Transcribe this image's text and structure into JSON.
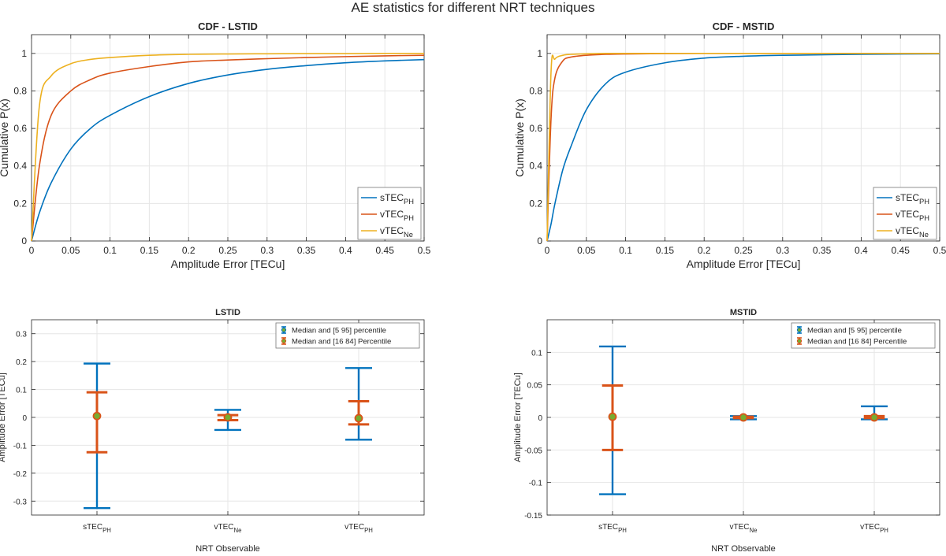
{
  "figure": {
    "title": "AE statistics for different NRT techniques"
  },
  "colors": {
    "blue": "#0072BD",
    "orange": "#D95319",
    "yellow": "#EDB120",
    "green": "#77AC30",
    "grid": "#e6e6e6",
    "axis": "#262626"
  },
  "chart_data": [
    {
      "id": "cdf-lstid",
      "type": "line",
      "title": "CDF - LSTID",
      "xlabel": "Amplitude Error [TECu]",
      "ylabel": "Cumulative P(x)",
      "xlim": [
        0,
        0.5
      ],
      "ylim": [
        0,
        1.1
      ],
      "xticks": [
        0,
        0.05,
        0.1,
        0.15,
        0.2,
        0.25,
        0.3,
        0.35,
        0.4,
        0.45,
        0.5
      ],
      "xtick_labels": [
        "0",
        "0.05",
        "0.1",
        "0.15",
        "0.2",
        "0.25",
        "0.3",
        "0.35",
        "0.4",
        "0.45",
        "0.5"
      ],
      "yticks": [
        0,
        0.2,
        0.4,
        0.6,
        0.8,
        1
      ],
      "ytick_labels": [
        "0",
        "0.2",
        "0.4",
        "0.6",
        "0.8",
        "1"
      ],
      "grid": true,
      "legend_position": "bottom-right",
      "x": [
        0,
        0.01,
        0.025,
        0.05,
        0.075,
        0.1,
        0.15,
        0.2,
        0.25,
        0.3,
        0.35,
        0.4,
        0.45,
        0.5
      ],
      "series": [
        {
          "name": "sTEC",
          "sub": "PH",
          "color": "blue",
          "values": [
            0,
            0.15,
            0.31,
            0.49,
            0.6,
            0.67,
            0.77,
            0.84,
            0.885,
            0.915,
            0.935,
            0.95,
            0.96,
            0.967
          ]
        },
        {
          "name": "vTEC",
          "sub": "PH",
          "color": "orange",
          "values": [
            0,
            0.4,
            0.67,
            0.8,
            0.86,
            0.895,
            0.93,
            0.955,
            0.965,
            0.972,
            0.978,
            0.983,
            0.987,
            0.99
          ]
        },
        {
          "name": "vTEC",
          "sub": "Ne",
          "color": "yellow",
          "values": [
            0,
            0.72,
            0.88,
            0.945,
            0.968,
            0.978,
            0.99,
            0.995,
            0.997,
            0.998,
            0.999,
            0.999,
            1,
            1
          ]
        }
      ]
    },
    {
      "id": "cdf-mstid",
      "type": "line",
      "title": "CDF - MSTID",
      "xlabel": "Amplitude Error [TECu]",
      "ylabel": "Cumulative P(x)",
      "xlim": [
        0,
        0.5
      ],
      "ylim": [
        0,
        1.1
      ],
      "xticks": [
        0,
        0.05,
        0.1,
        0.15,
        0.2,
        0.25,
        0.3,
        0.35,
        0.4,
        0.45,
        0.5
      ],
      "xtick_labels": [
        "0",
        "0.05",
        "0.1",
        "0.15",
        "0.2",
        "0.25",
        "0.3",
        "0.35",
        "0.4",
        "0.45",
        "0.5"
      ],
      "yticks": [
        0,
        0.2,
        0.4,
        0.6,
        0.8,
        1
      ],
      "ytick_labels": [
        "0",
        "0.2",
        "0.4",
        "0.6",
        "0.8",
        "1"
      ],
      "grid": true,
      "legend_position": "bottom-right",
      "x": [
        0,
        0.005,
        0.01,
        0.02,
        0.03,
        0.05,
        0.075,
        0.1,
        0.15,
        0.2,
        0.25,
        0.3,
        0.4,
        0.5
      ],
      "series": [
        {
          "name": "sTEC",
          "sub": "PH",
          "color": "blue",
          "values": [
            0,
            0.09,
            0.2,
            0.38,
            0.5,
            0.7,
            0.84,
            0.9,
            0.95,
            0.975,
            0.985,
            0.99,
            0.995,
            0.998
          ]
        },
        {
          "name": "vTEC",
          "sub": "PH",
          "color": "orange",
          "values": [
            0,
            0.65,
            0.87,
            0.96,
            0.98,
            0.99,
            0.995,
            0.997,
            0.999,
            1,
            1,
            1,
            1,
            1
          ]
        },
        {
          "name": "vTEC",
          "sub": "Ne",
          "color": "yellow",
          "values": [
            0,
            0.9,
            0.97,
            0.99,
            0.995,
            0.998,
            1,
            1,
            1,
            1,
            1,
            1,
            1,
            1
          ]
        }
      ]
    },
    {
      "id": "errorbar-lstid",
      "type": "errorbar",
      "title": "LSTID",
      "xlabel": "NRT Observable",
      "ylabel": "Amplitude Error [TECu]",
      "ylim": [
        -0.35,
        0.35
      ],
      "yticks": [
        -0.3,
        -0.2,
        -0.1,
        0,
        0.1,
        0.2,
        0.3
      ],
      "ytick_labels": [
        "-0.3",
        "-0.2",
        "-0.1",
        "0",
        "0.1",
        "0.2",
        "0.3"
      ],
      "grid": true,
      "legend_position": "top-right",
      "categories": [
        {
          "name": "sTEC",
          "sub": "PH"
        },
        {
          "name": "vTEC",
          "sub": "Ne"
        },
        {
          "name": "vTEC",
          "sub": "PH"
        }
      ],
      "series": [
        {
          "name": "Median and [5 95] percentile",
          "color": "blue",
          "marker": "green",
          "median": [
            0.005,
            0.0,
            -0.003
          ],
          "low": [
            -0.325,
            -0.045,
            -0.08
          ],
          "high": [
            0.193,
            0.027,
            0.177
          ]
        },
        {
          "name": "Median and [16 84] Percentile",
          "color": "orange",
          "marker": "green",
          "median": [
            0.005,
            0.0,
            -0.003
          ],
          "low": [
            -0.125,
            -0.01,
            -0.025
          ],
          "high": [
            0.09,
            0.008,
            0.058
          ]
        }
      ]
    },
    {
      "id": "errorbar-mstid",
      "type": "errorbar",
      "title": "MSTID",
      "xlabel": "NRT Observable",
      "ylabel": "Amplitude Error [TECu]",
      "ylim": [
        -0.15,
        0.15
      ],
      "yticks": [
        -0.15,
        -0.1,
        -0.05,
        0,
        0.05,
        0.1
      ],
      "ytick_labels": [
        "-0.15",
        "-0.1",
        "-0.05",
        "0",
        "0.05",
        "0.1"
      ],
      "grid": true,
      "legend_position": "top-right",
      "categories": [
        {
          "name": "sTEC",
          "sub": "PH"
        },
        {
          "name": "vTEC",
          "sub": "Ne"
        },
        {
          "name": "vTEC",
          "sub": "PH"
        }
      ],
      "series": [
        {
          "name": "Median and [5 95] percentile",
          "color": "blue",
          "marker": "green",
          "median": [
            0.001,
            0.0,
            0.0
          ],
          "low": [
            -0.118,
            -0.003,
            -0.003
          ],
          "high": [
            0.109,
            0.002,
            0.017
          ]
        },
        {
          "name": "Median and [16 84] Percentile",
          "color": "orange",
          "marker": "green",
          "median": [
            0.001,
            0.0,
            0.0
          ],
          "low": [
            -0.05,
            -0.001,
            -0.001
          ],
          "high": [
            0.049,
            0.001,
            0.002
          ]
        }
      ]
    }
  ]
}
